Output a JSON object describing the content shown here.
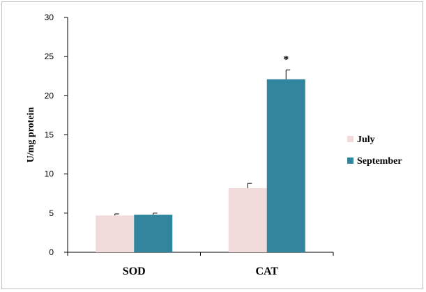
{
  "chart_data": {
    "type": "bar",
    "categories": [
      "SOD",
      "CAT"
    ],
    "series": [
      {
        "name": "July",
        "values": [
          4.7,
          8.2
        ],
        "errors": [
          0.2,
          0.6
        ],
        "color": "#f2dcdb"
      },
      {
        "name": "September",
        "values": [
          4.8,
          22.1
        ],
        "errors": [
          0.2,
          1.2
        ],
        "color": "#31859c"
      }
    ],
    "ylabel": "U/mg protein",
    "ylim": [
      0,
      30
    ],
    "yticks": [
      0,
      5,
      10,
      15,
      20,
      25,
      30
    ],
    "annotations": [
      {
        "category": "CAT",
        "series": "September",
        "text": "*"
      }
    ],
    "legend_position": "right",
    "grid": false
  }
}
